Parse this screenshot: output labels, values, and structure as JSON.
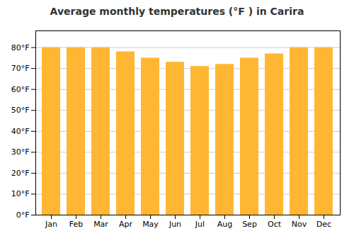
{
  "chart_data": {
    "type": "bar",
    "title": "Average monthly temperatures (°F ) in Carira",
    "categories": [
      "Jan",
      "Feb",
      "Mar",
      "Apr",
      "May",
      "Jun",
      "Jul",
      "Aug",
      "Sep",
      "Oct",
      "Nov",
      "Dec"
    ],
    "values": [
      80,
      80,
      80,
      78,
      75,
      73,
      71,
      72,
      75,
      77,
      80,
      80
    ],
    "color": "#FFB733",
    "ylim": [
      0,
      88
    ],
    "yticks": [
      {
        "value": 0,
        "label": "0°F"
      },
      {
        "value": 10,
        "label": "10°F"
      },
      {
        "value": 20,
        "label": "20°F"
      },
      {
        "value": 30,
        "label": "30°F"
      },
      {
        "value": 40,
        "label": "40°F"
      },
      {
        "value": 50,
        "label": "50°F"
      },
      {
        "value": 60,
        "label": "60°F"
      },
      {
        "value": 70,
        "label": "70°F"
      },
      {
        "value": 80,
        "label": "80°F"
      }
    ],
    "grid": true
  }
}
